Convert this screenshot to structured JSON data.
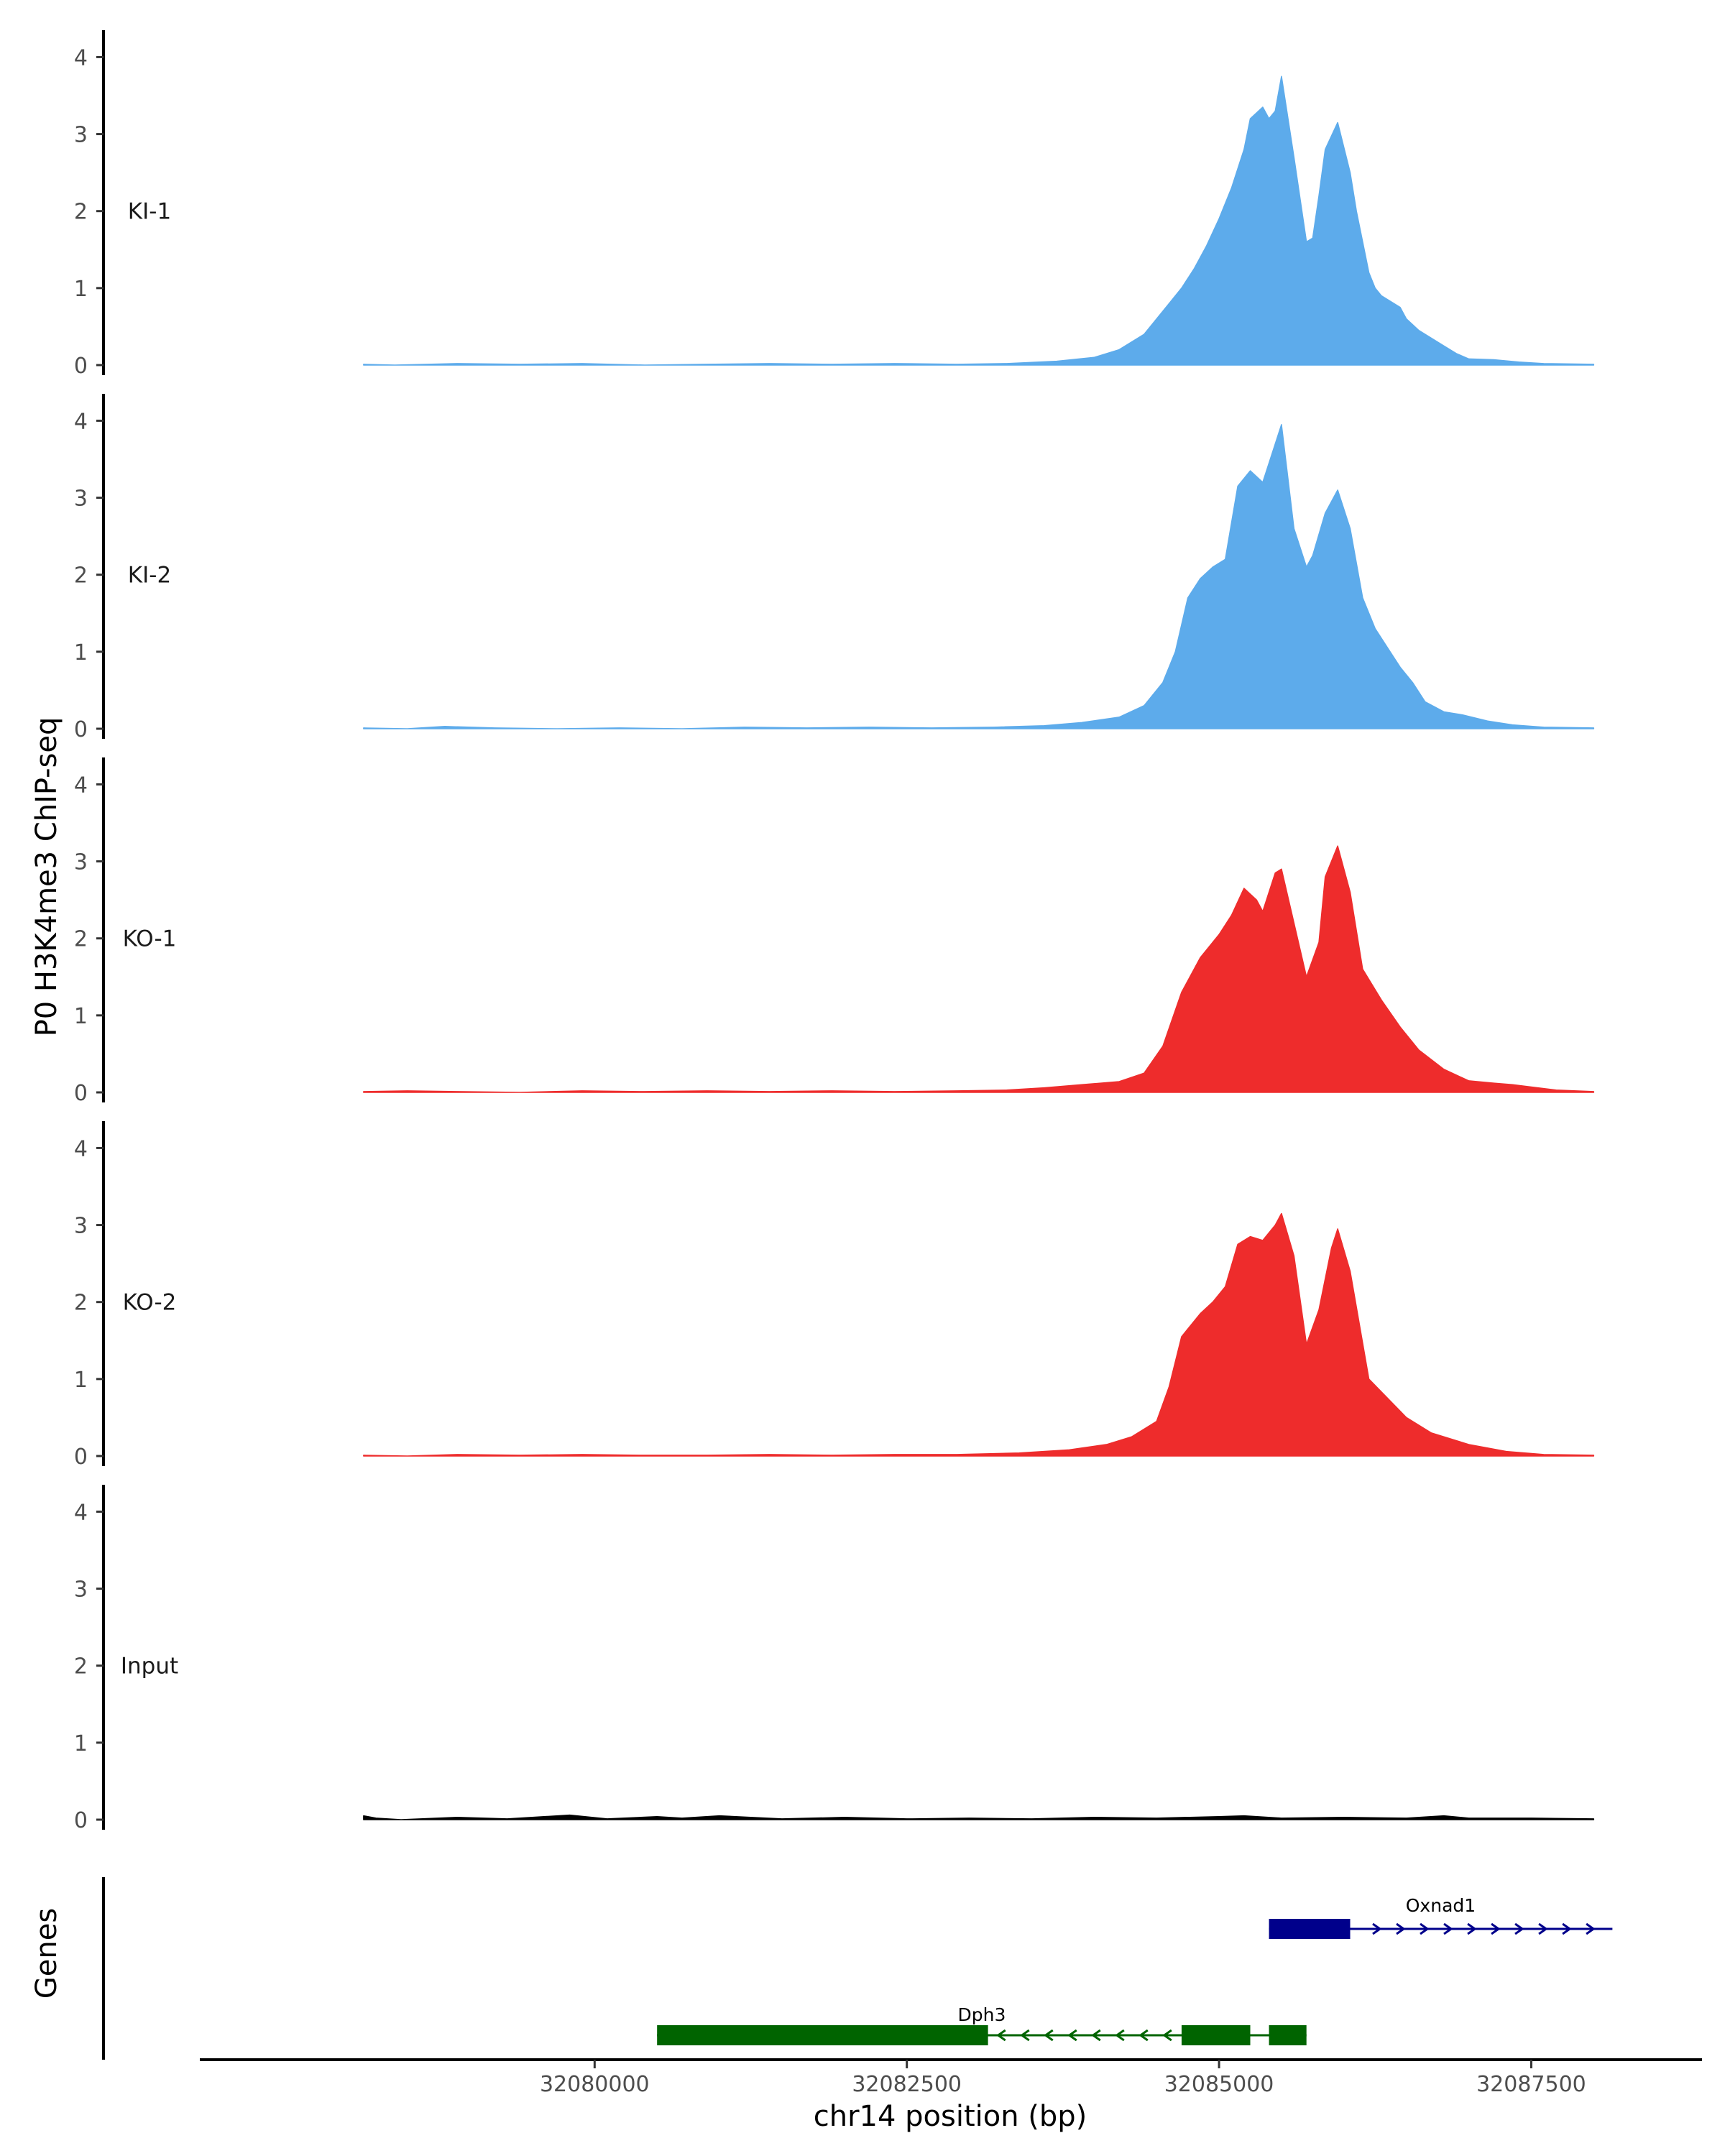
{
  "chart_data": {
    "type": "area",
    "ylabel": "P0 H3K4me3 ChIP-seq",
    "xlabel": "chr14 position (bp)",
    "xlim": [
      32076850,
      32088850
    ],
    "x_ticks": [
      32080000,
      32082500,
      32085000,
      32087500
    ],
    "x_tick_labels": [
      "32080000",
      "32082500",
      "32085000",
      "32087500"
    ],
    "ylim": [
      0,
      4.2
    ],
    "y_ticks": [
      0,
      1,
      2,
      3,
      4
    ],
    "y_tick_labels": [
      "0",
      "1",
      "2",
      "3",
      "4"
    ],
    "tracks": [
      {
        "name": "KI-1",
        "color": "#5DABEB",
        "x": [
          32078150,
          32078400,
          32078900,
          32079400,
          32079900,
          32080400,
          32080900,
          32081400,
          32081900,
          32082400,
          32082900,
          32083300,
          32083700,
          32084000,
          32084200,
          32084400,
          32084500,
          32084600,
          32084700,
          32084800,
          32084900,
          32085000,
          32085100,
          32085200,
          32085250,
          32085350,
          32085400,
          32085450,
          32085500,
          32085600,
          32085700,
          32085750,
          32085800,
          32085850,
          32085950,
          32086050,
          32086100,
          32086150,
          32086200,
          32086250,
          32086300,
          32086450,
          32086500,
          32086600,
          32086700,
          32086800,
          32086900,
          32087000,
          32087200,
          32087400,
          32087600,
          32088000
        ],
        "values": [
          0.01,
          0.0,
          0.02,
          0.01,
          0.02,
          0.0,
          0.01,
          0.02,
          0.01,
          0.02,
          0.01,
          0.02,
          0.05,
          0.1,
          0.2,
          0.4,
          0.6,
          0.8,
          1.0,
          1.25,
          1.55,
          1.9,
          2.3,
          2.8,
          3.2,
          3.35,
          3.2,
          3.3,
          3.75,
          2.7,
          1.6,
          1.65,
          2.2,
          2.8,
          3.15,
          2.5,
          2.0,
          1.6,
          1.2,
          1.0,
          0.9,
          0.75,
          0.6,
          0.45,
          0.35,
          0.25,
          0.15,
          0.08,
          0.07,
          0.04,
          0.02,
          0.01
        ]
      },
      {
        "name": "KI-2",
        "color": "#5DABEB",
        "x": [
          32078150,
          32078500,
          32078800,
          32079200,
          32079700,
          32080200,
          32080700,
          32081200,
          32081700,
          32082200,
          32082700,
          32083200,
          32083600,
          32083900,
          32084200,
          32084400,
          32084550,
          32084650,
          32084750,
          32084850,
          32084950,
          32085050,
          32085150,
          32085250,
          32085350,
          32085500,
          32085600,
          32085700,
          32085750,
          32085850,
          32085950,
          32086050,
          32086150,
          32086250,
          32086350,
          32086450,
          32086550,
          32086650,
          32086800,
          32086950,
          32087150,
          32087350,
          32087600,
          32088000
        ],
        "values": [
          0.01,
          0.0,
          0.03,
          0.01,
          0.0,
          0.01,
          0.0,
          0.02,
          0.01,
          0.02,
          0.01,
          0.02,
          0.04,
          0.08,
          0.15,
          0.3,
          0.6,
          1.0,
          1.7,
          1.95,
          2.1,
          2.2,
          3.15,
          3.35,
          3.2,
          3.95,
          2.6,
          2.1,
          2.25,
          2.8,
          3.1,
          2.6,
          1.7,
          1.3,
          1.05,
          0.8,
          0.6,
          0.35,
          0.22,
          0.18,
          0.1,
          0.05,
          0.02,
          0.01
        ]
      },
      {
        "name": "KO-1",
        "color": "#EE2C2C",
        "x": [
          32078150,
          32078500,
          32078900,
          32079400,
          32079900,
          32080400,
          32080900,
          32081400,
          32081900,
          32082400,
          32082900,
          32083300,
          32083600,
          32083900,
          32084200,
          32084400,
          32084550,
          32084700,
          32084850,
          32085000,
          32085100,
          32085200,
          32085300,
          32085350,
          32085450,
          32085500,
          32085600,
          32085700,
          32085800,
          32085850,
          32085950,
          32086050,
          32086150,
          32086300,
          32086450,
          32086600,
          32086800,
          32087000,
          32087200,
          32087350,
          32087500,
          32087700,
          32088000
        ],
        "values": [
          0.01,
          0.02,
          0.01,
          0.0,
          0.02,
          0.01,
          0.02,
          0.01,
          0.02,
          0.01,
          0.02,
          0.03,
          0.06,
          0.1,
          0.14,
          0.25,
          0.6,
          1.3,
          1.75,
          2.05,
          2.3,
          2.65,
          2.5,
          2.35,
          2.85,
          2.9,
          2.2,
          1.5,
          1.95,
          2.8,
          3.2,
          2.6,
          1.6,
          1.2,
          0.85,
          0.55,
          0.3,
          0.15,
          0.12,
          0.1,
          0.07,
          0.03,
          0.01
        ]
      },
      {
        "name": "KO-2",
        "color": "#EE2C2C",
        "x": [
          32078150,
          32078500,
          32078900,
          32079400,
          32079900,
          32080400,
          32080900,
          32081400,
          32081900,
          32082400,
          32082900,
          32083400,
          32083800,
          32084100,
          32084300,
          32084500,
          32084600,
          32084700,
          32084850,
          32084950,
          32085050,
          32085150,
          32085250,
          32085350,
          32085450,
          32085500,
          32085600,
          32085700,
          32085800,
          32085900,
          32085950,
          32086050,
          32086200,
          32086350,
          32086500,
          32086700,
          32087000,
          32087300,
          32087600,
          32088000
        ],
        "values": [
          0.01,
          0.0,
          0.02,
          0.01,
          0.02,
          0.01,
          0.01,
          0.02,
          0.01,
          0.02,
          0.02,
          0.04,
          0.08,
          0.15,
          0.25,
          0.45,
          0.9,
          1.55,
          1.85,
          2.0,
          2.2,
          2.75,
          2.85,
          2.8,
          3.0,
          3.15,
          2.6,
          1.45,
          1.9,
          2.7,
          2.95,
          2.4,
          1.0,
          0.75,
          0.5,
          0.3,
          0.15,
          0.06,
          0.02,
          0.01
        ]
      },
      {
        "name": "Input",
        "color": "#000000",
        "x": [
          32078150,
          32078250,
          32078450,
          32078900,
          32079300,
          32079800,
          32080100,
          32080500,
          32080700,
          32081000,
          32081500,
          32082000,
          32082500,
          32083000,
          32083500,
          32084000,
          32084500,
          32085000,
          32085200,
          32085500,
          32086000,
          32086500,
          32086800,
          32087000,
          32087500,
          32088000
        ],
        "values": [
          0.05,
          0.02,
          0.0,
          0.03,
          0.01,
          0.06,
          0.01,
          0.04,
          0.02,
          0.05,
          0.01,
          0.03,
          0.01,
          0.02,
          0.01,
          0.03,
          0.02,
          0.04,
          0.05,
          0.02,
          0.03,
          0.02,
          0.05,
          0.02,
          0.02,
          0.01
        ]
      }
    ],
    "genes": [
      {
        "name": "Oxnad1",
        "strand": "+",
        "color": "#00008B",
        "start": 32085400,
        "end": 32088150,
        "exons": [
          [
            32085400,
            32086050
          ]
        ]
      },
      {
        "name": "Dph3",
        "strand": "-",
        "color": "#006400",
        "start": 32080500,
        "end": 32085700,
        "exons": [
          [
            32080500,
            32083150
          ],
          [
            32084700,
            32085250
          ],
          [
            32085400,
            32085700
          ]
        ]
      }
    ],
    "genes_label": "Genes"
  }
}
